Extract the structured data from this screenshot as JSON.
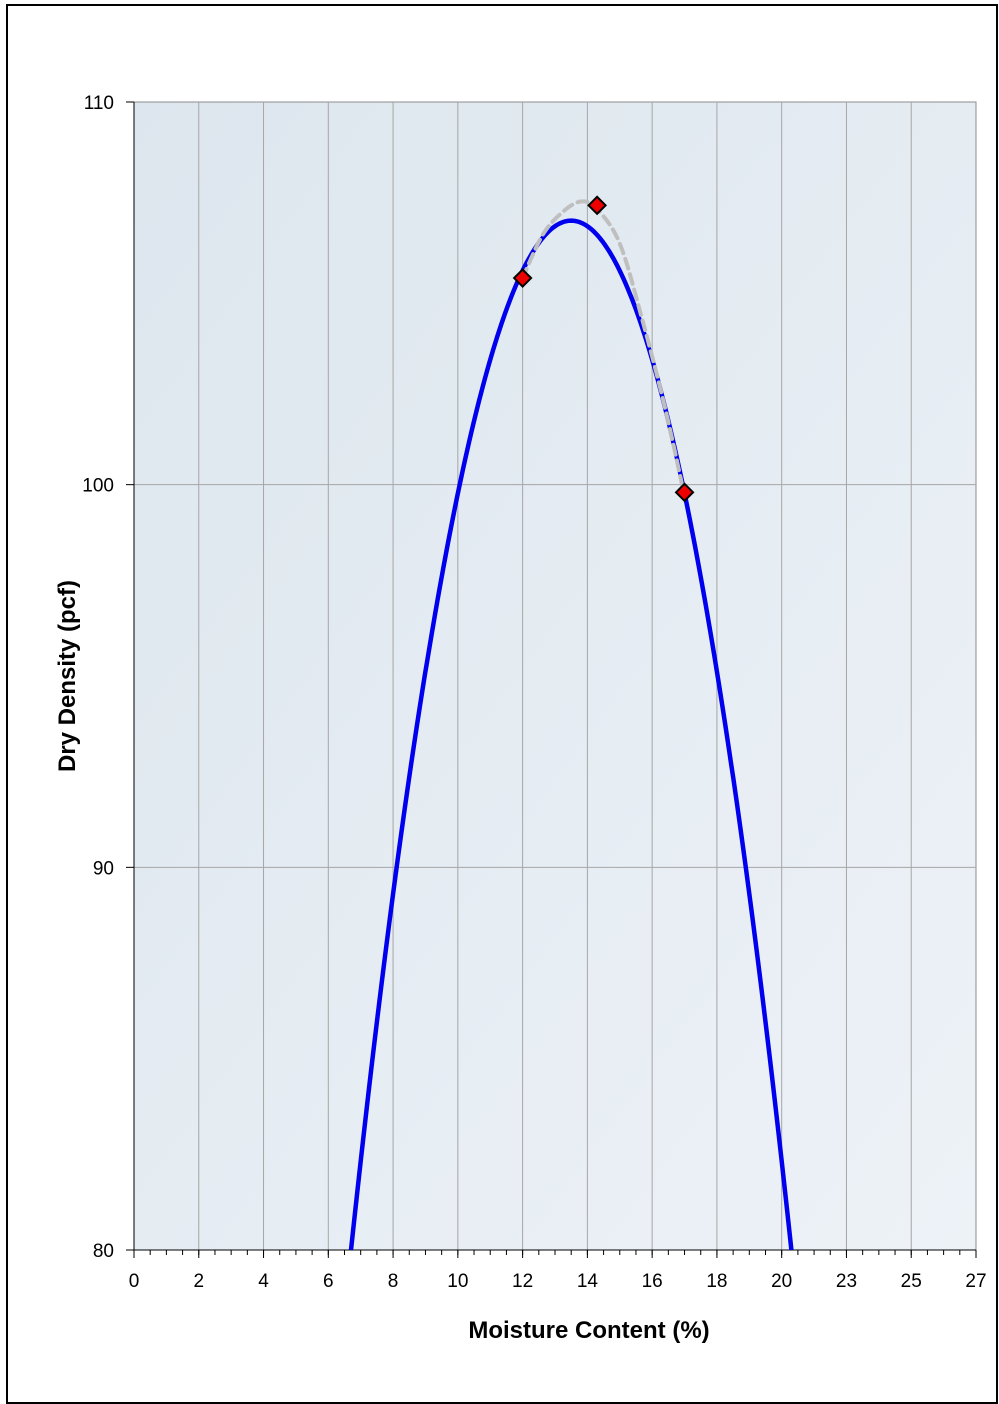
{
  "chart_data": {
    "type": "line",
    "title": "",
    "xlabel": "Moisture Content (%)",
    "ylabel": "Dry Density (pcf)",
    "xlim": [
      0,
      26
    ],
    "ylim": [
      80,
      110
    ],
    "x_tick_labels": [
      "0",
      "2",
      "4",
      "6",
      "8",
      "10",
      "12",
      "14",
      "16",
      "18",
      "20",
      "23",
      "25",
      "27"
    ],
    "y_ticks": [
      80,
      90,
      100,
      110
    ],
    "y_tick_labels": [
      "80",
      "90",
      "100",
      "110"
    ],
    "grid": true,
    "legend": "none",
    "colors": {
      "fitted_curve": "#0000ee",
      "connecting_curve": "#bfbfbf",
      "marker_fill": "#ee0000",
      "marker_edge": "#000000",
      "plot_background": "#e4ebf2",
      "gridline": "#a6a6a6"
    },
    "series": [
      {
        "style": "solid",
        "curve": "parabola",
        "vertex": [
          13.5,
          106.9
        ],
        "x": [
          6.7,
          8.1,
          10.0,
          12.0,
          13.5,
          15.0,
          17.0,
          18.9,
          20.3
        ],
        "y": [
          80.0,
          90.0,
          100.0,
          105.4,
          106.9,
          105.4,
          99.7,
          90.0,
          80.0
        ]
      },
      {
        "style": "dashed",
        "curve": "smooth",
        "x": [
          12.0,
          12.6,
          13.2,
          13.8,
          14.3,
          15.0,
          15.7,
          16.4,
          17.0
        ],
        "y": [
          105.4,
          106.5,
          107.1,
          107.4,
          107.2,
          106.3,
          104.3,
          102.0,
          99.7
        ]
      },
      {
        "style": "markers",
        "x": [
          12.0,
          14.3,
          17.0
        ],
        "y": [
          105.4,
          107.3,
          99.8
        ]
      }
    ]
  }
}
